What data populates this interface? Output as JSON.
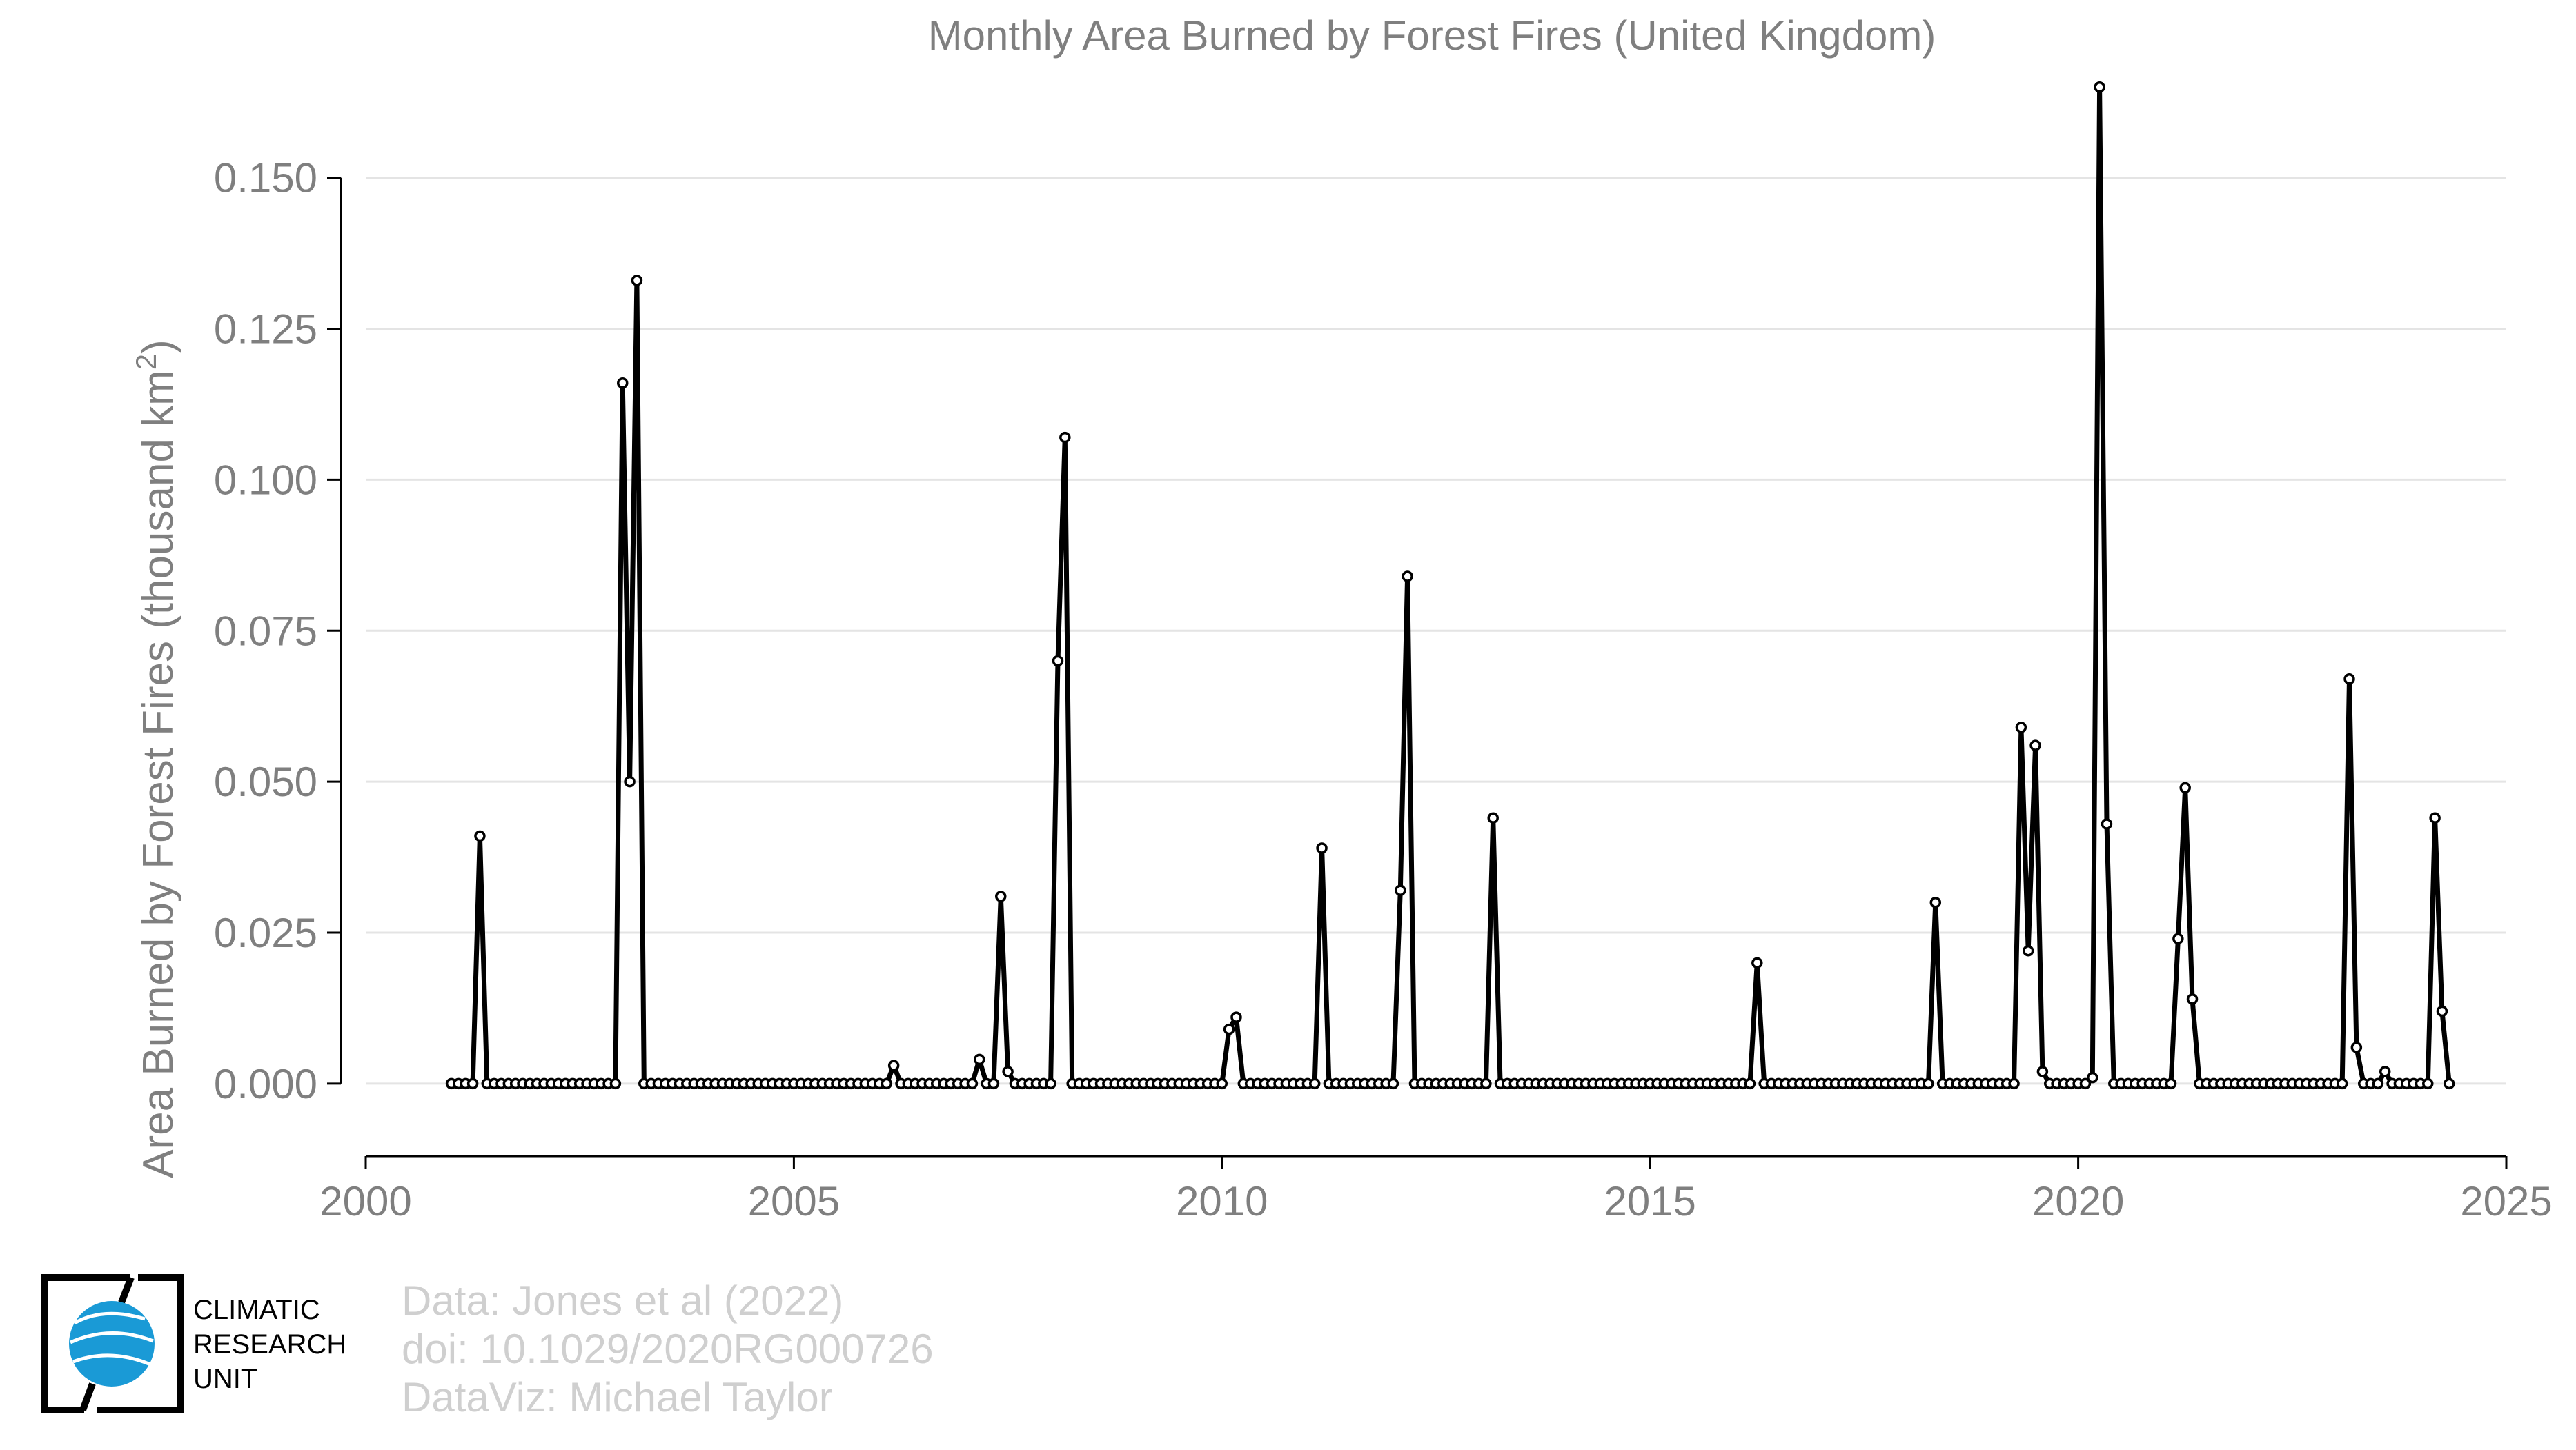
{
  "chart_data": {
    "type": "line",
    "title": "Monthly Area Burned by Forest Fires (United Kingdom)",
    "xlabel": "",
    "ylabel": "Area Burned by Forest Fires (thousand km",
    "ylabel_superscript": "2",
    "ylabel_close": ")",
    "xlim": [
      2000,
      2025
    ],
    "ylim": [
      -0.012,
      0.168
    ],
    "x_ticks": [
      2000,
      2005,
      2010,
      2015,
      2020,
      2025
    ],
    "x_tick_labels": [
      "2000",
      "2005",
      "2010",
      "2015",
      "2020",
      "2025"
    ],
    "y_ticks": [
      0.0,
      0.025,
      0.05,
      0.075,
      0.1,
      0.125,
      0.15
    ],
    "y_tick_labels": [
      "0.000",
      "0.025",
      "0.050",
      "0.075",
      "0.100",
      "0.125",
      "0.150"
    ],
    "grid": "horizontal",
    "legend": "none",
    "line_color": "#000000",
    "marker": "open-circle",
    "series": [
      {
        "start": "2001-01",
        "values": [
          0,
          0,
          0,
          0,
          0.041,
          0,
          0,
          0,
          0,
          0,
          0,
          0,
          0,
          0,
          0,
          0,
          0,
          0,
          0,
          0,
          0,
          0,
          0,
          0,
          0.116,
          0.05,
          0.133,
          0,
          0,
          0,
          0,
          0,
          0,
          0,
          0,
          0,
          0,
          0,
          0,
          0,
          0,
          0,
          0,
          0,
          0,
          0,
          0,
          0,
          0,
          0,
          0,
          0,
          0,
          0,
          0,
          0,
          0,
          0,
          0,
          0,
          0,
          0,
          0.003,
          0,
          0,
          0,
          0,
          0,
          0,
          0,
          0,
          0,
          0,
          0,
          0.004,
          0,
          0,
          0.031,
          0.002,
          0,
          0,
          0,
          0,
          0,
          0,
          0.07,
          0.107,
          0,
          0,
          0,
          0,
          0,
          0,
          0,
          0,
          0,
          0,
          0,
          0,
          0,
          0,
          0,
          0,
          0,
          0,
          0,
          0,
          0,
          0,
          0.009,
          0.011,
          0,
          0,
          0,
          0,
          0,
          0,
          0,
          0,
          0,
          0,
          0,
          0.039,
          0,
          0,
          0,
          0,
          0,
          0,
          0,
          0,
          0,
          0,
          0.032,
          0.084,
          0,
          0,
          0,
          0,
          0,
          0,
          0,
          0,
          0,
          0,
          0,
          0.044,
          0,
          0,
          0,
          0,
          0,
          0,
          0,
          0,
          0,
          0,
          0,
          0,
          0,
          0,
          0,
          0,
          0,
          0,
          0,
          0,
          0,
          0,
          0,
          0,
          0,
          0,
          0,
          0,
          0,
          0,
          0,
          0,
          0,
          0,
          0,
          0,
          0.02,
          0,
          0,
          0,
          0,
          0,
          0,
          0,
          0,
          0,
          0,
          0,
          0,
          0,
          0,
          0,
          0,
          0,
          0,
          0,
          0,
          0,
          0,
          0,
          0,
          0.03,
          0,
          0,
          0,
          0,
          0,
          0,
          0,
          0,
          0,
          0,
          0,
          0.059,
          0.022,
          0.056,
          0.002,
          0,
          0,
          0,
          0,
          0,
          0,
          0.001,
          0.165,
          0.043,
          0,
          0,
          0,
          0,
          0,
          0,
          0,
          0,
          0,
          0.024,
          0.049,
          0.014,
          0,
          0,
          0,
          0,
          0,
          0,
          0,
          0,
          0,
          0,
          0,
          0,
          0,
          0,
          0,
          0,
          0,
          0,
          0,
          0,
          0,
          0.067,
          0.006,
          0,
          0,
          0,
          0.002,
          0,
          0,
          0,
          0,
          0,
          0,
          0.044,
          0.012,
          0
        ]
      }
    ]
  },
  "credits": {
    "line1": "Data: Jones et al (2022)",
    "line2": "doi: 10.1029/2020RG000726",
    "line3": "DataViz: Michael Taylor"
  },
  "logo": {
    "line1": "CLIMATIC",
    "line2": "RESEARCH",
    "line3": "UNIT",
    "globe_color": "#1a9ad6"
  }
}
